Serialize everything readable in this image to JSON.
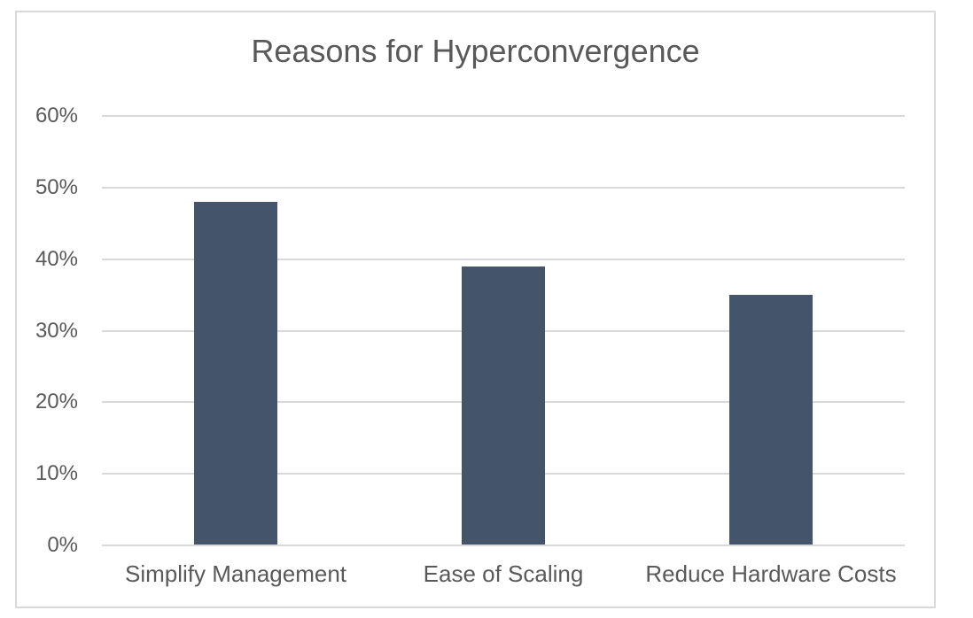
{
  "chart_data": {
    "type": "bar",
    "title": "Reasons for Hyperconvergence",
    "categories": [
      "Simplify Management",
      "Ease of Scaling",
      "Reduce Hardware Costs"
    ],
    "values": [
      48,
      39,
      35
    ],
    "value_unit": "%",
    "xlabel": "",
    "ylabel": "",
    "ylim": [
      0,
      60
    ],
    "ytick_step": 10,
    "ytick_suffix": "%",
    "ytick_labels": [
      "0%",
      "10%",
      "20%",
      "30%",
      "40%",
      "50%",
      "60%"
    ],
    "grid": true,
    "legend_position": "none",
    "colors": {
      "bar": "#44546A",
      "text": "#595959",
      "gridline": "#D9D9D9",
      "background": "#FFFFFF"
    }
  }
}
